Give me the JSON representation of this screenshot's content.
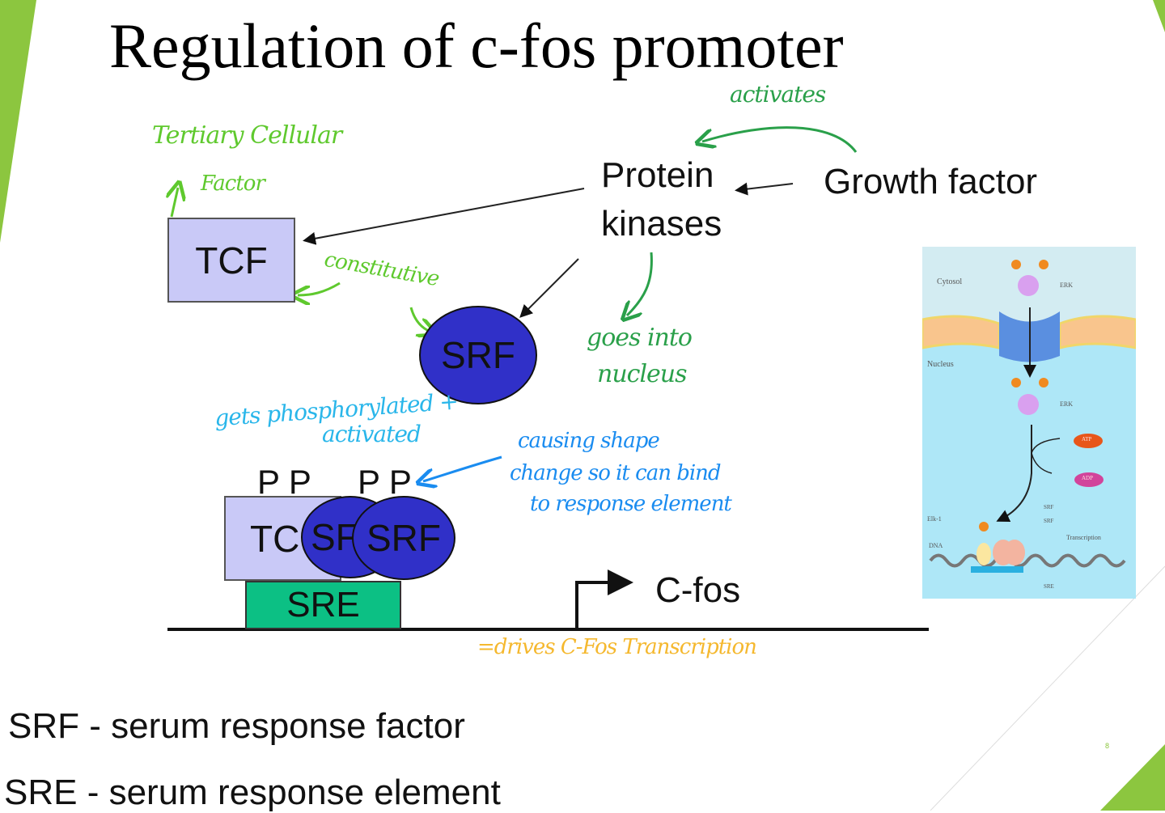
{
  "slide": {
    "title": "Regulation of c-fos promoter",
    "page_number": "8",
    "accent_color": "#8cc63f"
  },
  "diagram": {
    "protein_kinases_line1": "Protein",
    "protein_kinases_line2": "kinases",
    "growth_factor": "Growth factor",
    "tcf": "TCF",
    "srf": "SRF",
    "bound_tcf": "TC",
    "bound_srf1": "SF",
    "bound_srf2": "SRF",
    "phospho1": "P P",
    "phospho2": "P P",
    "sre": "SRE",
    "cfos": "C-fos"
  },
  "annotations": {
    "tertiary_line1": "Tertiary Cellular",
    "tertiary_line2": "Factor",
    "activates": "activates",
    "constitutive": "constitutive",
    "goes_into_line1": "goes into",
    "goes_into_line2": "nucleus",
    "phosphorylated_line1": "gets phosphorylated +",
    "phosphorylated_line2": "activated",
    "shape_line1": "causing shape",
    "shape_line2": "change so it can bind",
    "shape_line3": "to response element",
    "drives": "=drives C-Fos Transcription"
  },
  "inset": {
    "cytosol": "Cytosol",
    "erk1": "ERK",
    "nucleus": "Nucleus",
    "erk2": "ERK",
    "atp": "ATP",
    "adp": "ADP",
    "elk1": "Elk-1",
    "srf1": "SRF",
    "srf2": "SRF",
    "dna": "DNA",
    "transcription": "Transcription",
    "sre": "SRE"
  },
  "legend": {
    "srf": "SRF - serum response factor",
    "sre": "SRE - serum response element"
  }
}
